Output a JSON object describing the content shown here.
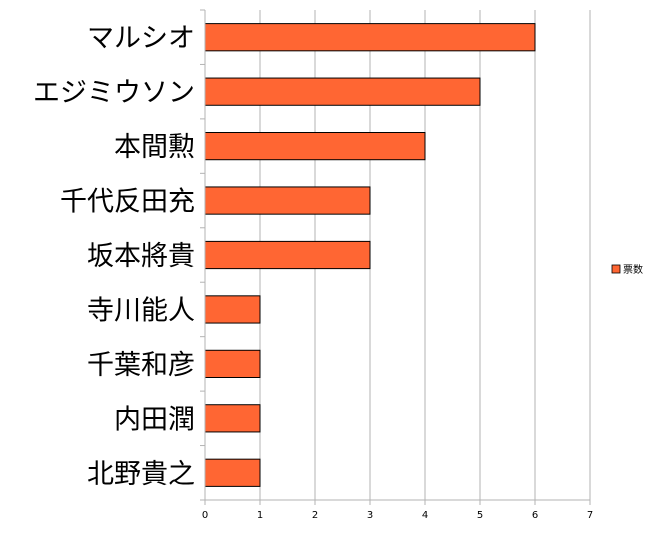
{
  "chart_data": {
    "type": "bar",
    "orientation": "horizontal",
    "categories": [
      "マルシオ",
      "エジミウソン",
      "本間勲",
      "千代反田充",
      "坂本將貴",
      "寺川能人",
      "千葉和彦",
      "内田潤",
      "北野貴之"
    ],
    "series": [
      {
        "name": "票数",
        "values": [
          6,
          5,
          4,
          3,
          3,
          1,
          1,
          1,
          1
        ]
      }
    ],
    "x_ticks": [
      "0",
      "1",
      "2",
      "3",
      "4",
      "5",
      "6",
      "7"
    ],
    "xlim": [
      0,
      7
    ],
    "grid": true,
    "legend_position": "right",
    "bar_color": "#ff6633",
    "title": "",
    "xlabel": "",
    "ylabel": ""
  }
}
